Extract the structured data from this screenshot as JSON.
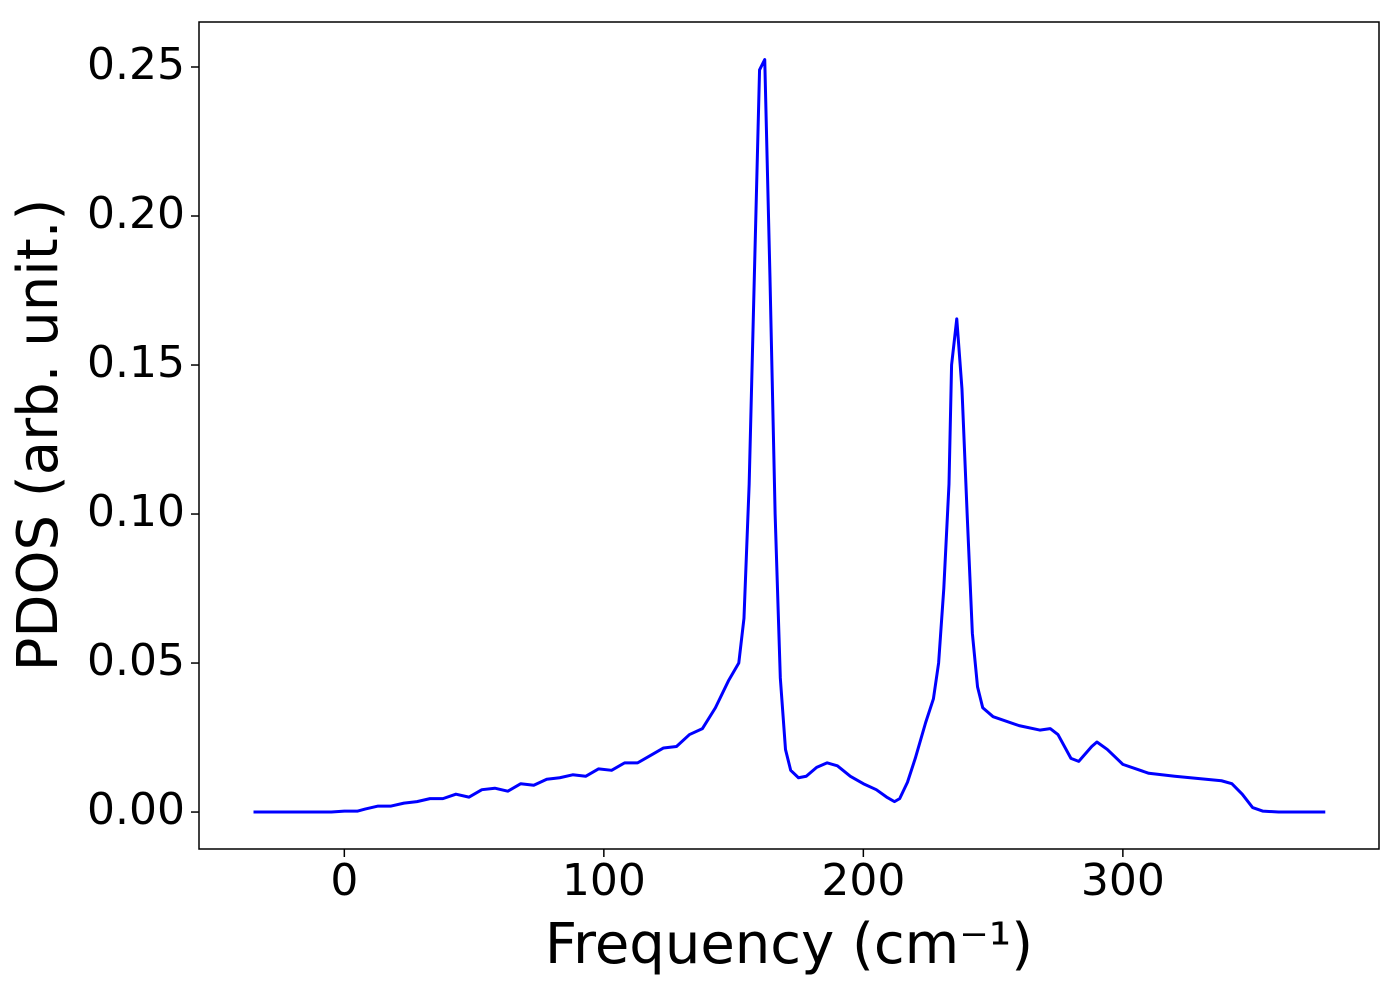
{
  "chart_data": {
    "type": "line",
    "xlabel": "Frequency (cm⁻¹)",
    "ylabel": "PDOS (arb. unit.)",
    "x": [
      -35,
      -5,
      0,
      5,
      8,
      13,
      18,
      23,
      28,
      33,
      38,
      43,
      48,
      53,
      58,
      63,
      68,
      73,
      78,
      83,
      88,
      93,
      98,
      103,
      108,
      113,
      118,
      123,
      128,
      133,
      138,
      143,
      148,
      152,
      154,
      156,
      158,
      160,
      162,
      164,
      166,
      168,
      170,
      172,
      175,
      178,
      182,
      186,
      190,
      195,
      200,
      205,
      209,
      212,
      214,
      217,
      220,
      224,
      227,
      229,
      231,
      233,
      234,
      236,
      238,
      240,
      242,
      244,
      246,
      250,
      260,
      268,
      272,
      275,
      280,
      283,
      288,
      290,
      294,
      300,
      310,
      320,
      338,
      342,
      346,
      350,
      354,
      360,
      378
    ],
    "series": [
      {
        "name": "PDOS",
        "color": "#0000ff",
        "values": [
          0,
          0,
          0.0003,
          0.0003,
          0.001,
          0.002,
          0.002,
          0.003,
          0.0035,
          0.0045,
          0.0045,
          0.006,
          0.005,
          0.0075,
          0.008,
          0.007,
          0.0095,
          0.009,
          0.011,
          0.0115,
          0.0125,
          0.012,
          0.0145,
          0.014,
          0.0165,
          0.0165,
          0.019,
          0.0215,
          0.022,
          0.026,
          0.028,
          0.035,
          0.044,
          0.05,
          0.065,
          0.11,
          0.18,
          0.249,
          0.2525,
          0.18,
          0.1,
          0.045,
          0.021,
          0.014,
          0.0115,
          0.012,
          0.015,
          0.0165,
          0.0155,
          0.012,
          0.0095,
          0.0075,
          0.005,
          0.0035,
          0.0045,
          0.01,
          0.018,
          0.03,
          0.038,
          0.05,
          0.075,
          0.11,
          0.15,
          0.1655,
          0.142,
          0.1,
          0.06,
          0.042,
          0.035,
          0.032,
          0.029,
          0.0275,
          0.028,
          0.026,
          0.018,
          0.017,
          0.022,
          0.0235,
          0.021,
          0.016,
          0.013,
          0.012,
          0.0105,
          0.0095,
          0.006,
          0.0015,
          0.0003,
          0,
          0
        ]
      }
    ],
    "xlim": [
      -56,
      398.7
    ],
    "ylim": [
      -0.0124,
      0.2651
    ],
    "xticks": [
      0,
      100,
      200,
      300
    ],
    "yticks": [
      {
        "value": 0,
        "label": "0.00"
      },
      {
        "value": 0.05,
        "label": "0.05"
      },
      {
        "value": 0.1,
        "label": "0.10"
      },
      {
        "value": 0.15,
        "label": "0.15"
      },
      {
        "value": 0.2,
        "label": "0.20"
      },
      {
        "value": 0.25,
        "label": "0.25"
      }
    ]
  }
}
